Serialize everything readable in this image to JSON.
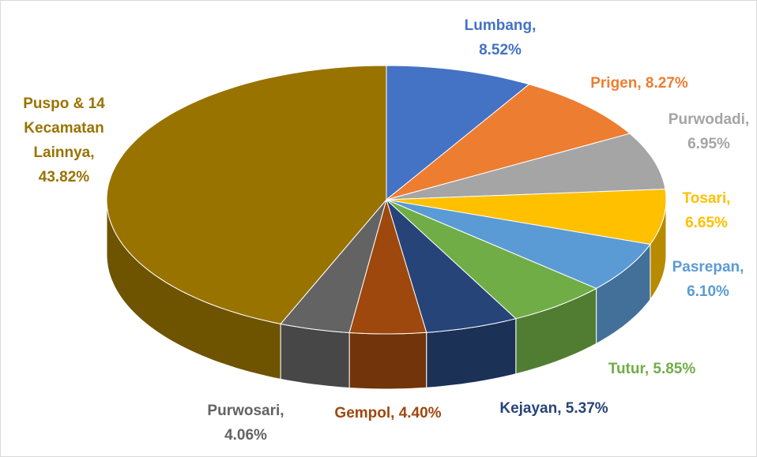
{
  "chart_data": {
    "type": "pie3d",
    "values": [
      8.52,
      8.27,
      6.95,
      6.65,
      6.1,
      5.85,
      5.37,
      4.4,
      4.06,
      43.82
    ],
    "value_labels": [
      "Lumbang, 8.52%",
      "Prigen, 8.27%",
      "Purwodadi, 6.95%",
      "Tosari, 6.65%",
      "Pasrepan, 6.10%",
      "Tutur, 5.85%",
      "Kejayan, 5.37%",
      "Gempol, 4.40%",
      "Purwosari, 4.06%",
      "Puspo & 14 Kecamatan Lainnya, 43.82%"
    ],
    "colors": [
      "#4472c4",
      "#ed7d31",
      "#a5a5a5",
      "#ffc000",
      "#5b9bd5",
      "#70ad47",
      "#264478",
      "#9e480e",
      "#636363",
      "#997300"
    ]
  }
}
